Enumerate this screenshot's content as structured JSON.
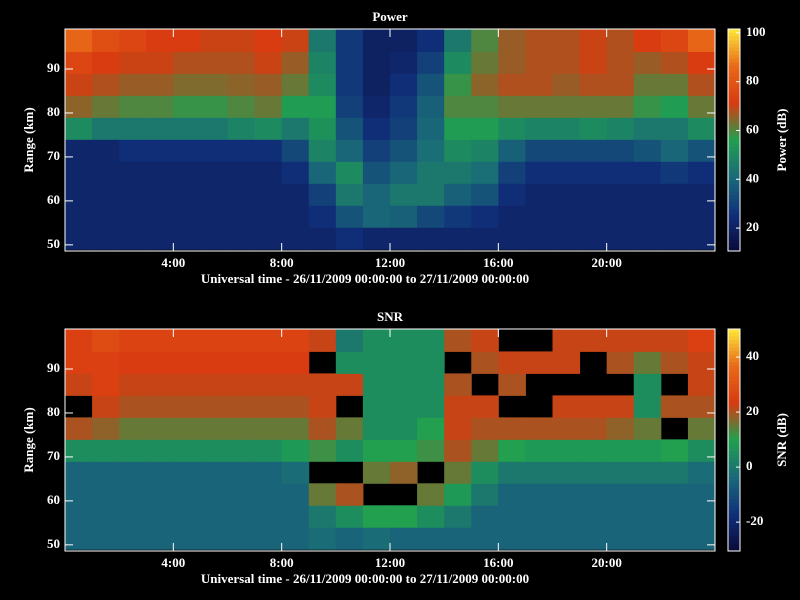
{
  "chart_data": [
    {
      "type": "heatmap",
      "title": "Power",
      "xlabel": "Universal time - 26/11/2009 00:00:00 to 27/11/2009 00:00:00",
      "ylabel": "Range (km)",
      "colorbar_label": "Power (dB)",
      "colorscale": [
        "#0a0a38",
        "#10307a",
        "#1a6a78",
        "#20a050",
        "#d83a10",
        "#e86a18",
        "#ffe838"
      ],
      "x": [
        0,
        1,
        2,
        3,
        4,
        5,
        6,
        7,
        8,
        9,
        10,
        11,
        12,
        13,
        14,
        15,
        16,
        17,
        18,
        19,
        20,
        21,
        22,
        23,
        24
      ],
      "y": [
        49,
        54,
        59,
        64,
        69,
        74,
        79,
        84,
        89,
        94,
        99
      ],
      "xlim": [
        0,
        24
      ],
      "ylim": [
        48.6,
        99.1
      ],
      "clim": [
        10.6,
        101.6
      ],
      "xticks": [
        {
          "value": 4,
          "label": "4:00"
        },
        {
          "value": 8,
          "label": "8:00"
        },
        {
          "value": 12,
          "label": "12:00"
        },
        {
          "value": 16,
          "label": "16:00"
        },
        {
          "value": 20,
          "label": "20:00"
        }
      ],
      "yticks": [
        50,
        60,
        70,
        80,
        90
      ],
      "cticks": [
        20,
        40,
        60,
        80,
        100
      ],
      "values": [
        [
          22,
          22,
          22,
          22,
          22,
          50,
          65,
          70,
          75,
          85
        ],
        [
          22,
          22,
          22,
          22,
          22,
          45,
          62,
          68,
          72,
          78
        ],
        [
          22,
          22,
          22,
          22,
          25,
          45,
          60,
          66,
          70,
          75
        ],
        [
          22,
          22,
          22,
          22,
          25,
          45,
          60,
          66,
          70,
          72
        ],
        [
          22,
          22,
          22,
          22,
          25,
          45,
          58,
          64,
          68,
          72
        ],
        [
          22,
          22,
          22,
          22,
          25,
          45,
          58,
          64,
          68,
          70
        ],
        [
          22,
          22,
          22,
          22,
          25,
          48,
          60,
          65,
          68,
          70
        ],
        [
          22,
          22,
          22,
          22,
          25,
          50,
          62,
          66,
          70,
          72
        ],
        [
          22,
          22,
          22,
          25,
          32,
          45,
          55,
          62,
          66,
          70
        ],
        [
          22,
          25,
          30,
          40,
          48,
          52,
          55,
          50,
          48,
          45
        ],
        [
          25,
          35,
          45,
          50,
          40,
          35,
          30,
          28,
          28,
          28
        ],
        [
          22,
          40,
          40,
          35,
          30,
          25,
          22,
          20,
          20,
          20
        ],
        [
          22,
          38,
          45,
          40,
          35,
          30,
          28,
          25,
          22,
          20
        ],
        [
          22,
          32,
          45,
          45,
          42,
          40,
          38,
          35,
          30,
          25
        ],
        [
          22,
          28,
          38,
          45,
          50,
          55,
          60,
          58,
          50,
          45
        ],
        [
          22,
          25,
          35,
          42,
          48,
          55,
          60,
          65,
          62,
          60
        ],
        [
          22,
          22,
          25,
          30,
          38,
          50,
          62,
          68,
          66,
          66
        ],
        [
          22,
          22,
          22,
          25,
          32,
          48,
          62,
          68,
          68,
          68
        ],
        [
          22,
          22,
          22,
          25,
          32,
          48,
          62,
          66,
          68,
          68
        ],
        [
          22,
          22,
          22,
          25,
          32,
          50,
          62,
          68,
          70,
          70
        ],
        [
          22,
          22,
          22,
          25,
          32,
          48,
          62,
          68,
          68,
          68
        ],
        [
          22,
          22,
          22,
          25,
          35,
          45,
          58,
          62,
          66,
          72
        ],
        [
          22,
          22,
          22,
          28,
          40,
          45,
          55,
          62,
          68,
          75
        ],
        [
          22,
          22,
          22,
          25,
          35,
          50,
          62,
          68,
          72,
          85
        ]
      ]
    },
    {
      "type": "heatmap",
      "title": "SNR",
      "xlabel": "Universal time - 26/11/2009 00:00:00 to 27/11/2009 00:00:00",
      "ylabel": "Range (km)",
      "colorbar_label": "SNR (dB)",
      "colorscale": [
        "#0a0a38",
        "#10307a",
        "#1a6a78",
        "#20a050",
        "#d83a10",
        "#e86a18",
        "#ffe838"
      ],
      "x": [
        0,
        1,
        2,
        3,
        4,
        5,
        6,
        7,
        8,
        9,
        10,
        11,
        12,
        13,
        14,
        15,
        16,
        17,
        18,
        19,
        20,
        21,
        22,
        23,
        24
      ],
      "y": [
        49,
        54,
        59,
        64,
        69,
        74,
        79,
        84,
        89,
        94,
        99
      ],
      "xlim": [
        0,
        24
      ],
      "ylim": [
        48.6,
        99.1
      ],
      "clim": [
        -30.5,
        50.2
      ],
      "xticks": [
        {
          "value": 4,
          "label": "4:00"
        },
        {
          "value": 8,
          "label": "8:00"
        },
        {
          "value": 12,
          "label": "12:00"
        },
        {
          "value": 16,
          "label": "16:00"
        },
        {
          "value": 20,
          "label": "20:00"
        }
      ],
      "yticks": [
        50,
        60,
        70,
        80,
        90
      ],
      "cticks": [
        -20,
        0,
        20,
        40
      ],
      "values": [
        [
          -5,
          -5,
          -5,
          -5,
          5,
          20,
          null,
          22,
          25,
          25
        ],
        [
          -5,
          -5,
          -5,
          -5,
          5,
          18,
          22,
          25,
          25,
          28
        ],
        [
          -5,
          -5,
          -5,
          -5,
          5,
          15,
          20,
          22,
          24,
          26
        ],
        [
          -5,
          -5,
          -5,
          -5,
          5,
          15,
          20,
          22,
          24,
          26
        ],
        [
          -5,
          -5,
          -5,
          -5,
          5,
          15,
          20,
          22,
          24,
          26
        ],
        [
          -5,
          -5,
          -5,
          -5,
          5,
          15,
          20,
          22,
          24,
          26
        ],
        [
          -5,
          -5,
          -5,
          -5,
          5,
          15,
          20,
          22,
          24,
          26
        ],
        [
          -5,
          -5,
          -5,
          -5,
          5,
          15,
          20,
          22,
          24,
          26
        ],
        [
          -5,
          -5,
          -5,
          -3,
          8,
          15,
          20,
          22,
          24,
          26
        ],
        [
          -3,
          0,
          15,
          null,
          12,
          20,
          22,
          22,
          null,
          22
        ],
        [
          -5,
          5,
          20,
          null,
          5,
          15,
          null,
          22,
          5,
          0
        ],
        [
          -3,
          10,
          null,
          15,
          10,
          5,
          5,
          5,
          5,
          5
        ],
        [
          -5,
          10,
          null,
          18,
          10,
          5,
          5,
          5,
          5,
          5
        ],
        [
          -5,
          5,
          15,
          null,
          12,
          10,
          5,
          5,
          5,
          5
        ],
        [
          -5,
          0,
          8,
          15,
          20,
          22,
          22,
          20,
          null,
          20
        ],
        [
          -5,
          -5,
          0,
          5,
          15,
          20,
          22,
          null,
          20,
          22
        ],
        [
          -5,
          -5,
          -5,
          0,
          10,
          20,
          null,
          20,
          22,
          null
        ],
        [
          -5,
          -5,
          -5,
          0,
          8,
          20,
          null,
          null,
          22,
          null
        ],
        [
          -5,
          -5,
          -5,
          0,
          8,
          20,
          22,
          null,
          22,
          22
        ],
        [
          -5,
          -5,
          -5,
          0,
          8,
          20,
          22,
          null,
          null,
          22
        ],
        [
          -5,
          -5,
          -5,
          0,
          8,
          18,
          22,
          null,
          20,
          22
        ],
        [
          -5,
          -5,
          -5,
          0,
          8,
          15,
          5,
          5,
          15,
          22
        ],
        [
          -5,
          -5,
          -5,
          0,
          10,
          null,
          20,
          null,
          20,
          22
        ],
        [
          -5,
          -5,
          -5,
          -3,
          5,
          15,
          20,
          22,
          22,
          25
        ]
      ]
    }
  ]
}
